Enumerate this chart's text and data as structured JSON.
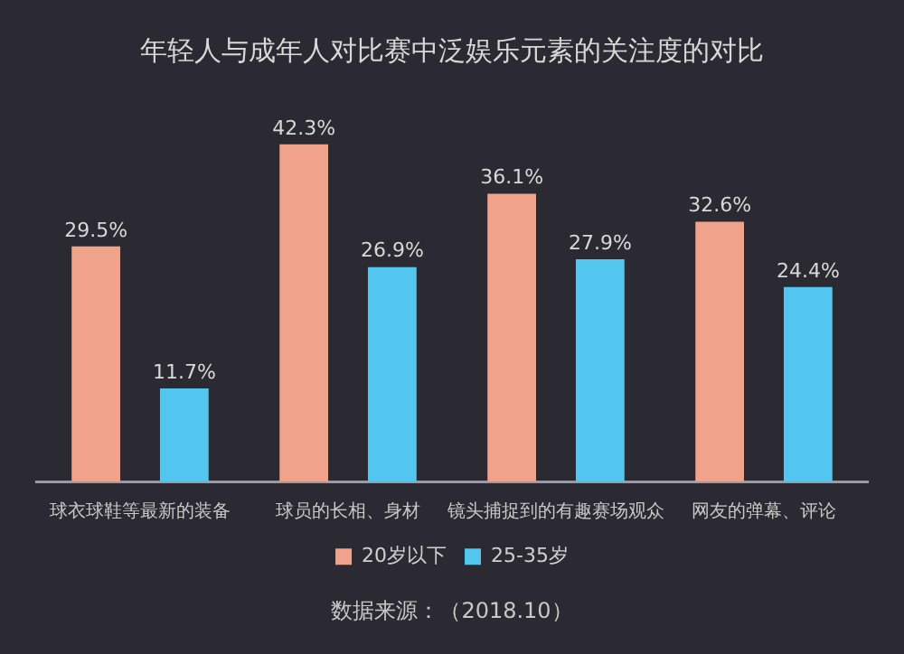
{
  "chart_data": {
    "type": "bar",
    "title": "年轻人与成年人对比赛中泛娱乐元素的关注度的对比",
    "categories": [
      "球衣球鞋等最新的装备",
      "球员的长相、身材",
      "镜头捕捉到的有趣赛场观众",
      "网友的弹幕、评论"
    ],
    "series": [
      {
        "name": "20岁以下",
        "color": "#f0a38a",
        "values": [
          29.5,
          42.3,
          36.1,
          32.6
        ],
        "value_labels": [
          "29.5%",
          "42.3%",
          "36.1%",
          "32.6%"
        ]
      },
      {
        "name": "25-35岁",
        "color": "#52c6ee",
        "values": [
          11.7,
          26.9,
          27.9,
          24.4
        ],
        "value_labels": [
          "11.7%",
          "26.9%",
          "27.9%",
          "24.4%"
        ]
      }
    ],
    "legend": "bottom",
    "grid": false,
    "annotations": [
      "数据来源：（2018.10）"
    ]
  }
}
